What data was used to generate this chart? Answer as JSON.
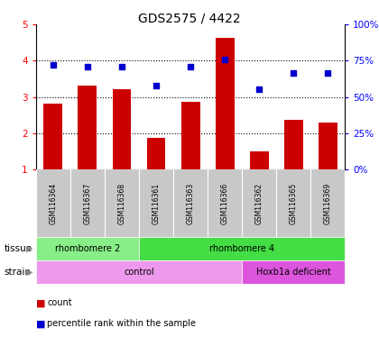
{
  "title": "GDS2575 / 4422",
  "samples": [
    "GSM116364",
    "GSM116367",
    "GSM116368",
    "GSM116361",
    "GSM116363",
    "GSM116366",
    "GSM116362",
    "GSM116365",
    "GSM116369"
  ],
  "counts": [
    2.82,
    3.3,
    3.2,
    1.88,
    2.86,
    4.62,
    1.5,
    2.38,
    2.3
  ],
  "percentile_ranks": [
    3.88,
    3.84,
    3.84,
    3.3,
    3.84,
    4.02,
    3.22,
    3.66,
    3.66
  ],
  "ylim": [
    1,
    5
  ],
  "y2lim": [
    0,
    100
  ],
  "yticks": [
    1,
    2,
    3,
    4,
    5
  ],
  "y2ticks": [
    0,
    25,
    50,
    75,
    100
  ],
  "y2ticklabels": [
    "0%",
    "25%",
    "50%",
    "75%",
    "100%"
  ],
  "bar_color": "#cc0000",
  "dot_color": "#0000cc",
  "tissue_labels": [
    {
      "text": "rhombomere 2",
      "start": 0,
      "end": 3,
      "color": "#88ee88"
    },
    {
      "text": "rhombomere 4",
      "start": 3,
      "end": 9,
      "color": "#44dd44"
    }
  ],
  "strain_labels": [
    {
      "text": "control",
      "start": 0,
      "end": 6,
      "color": "#ee99ee"
    },
    {
      "text": "Hoxb1a deficient",
      "start": 6,
      "end": 9,
      "color": "#dd55dd"
    }
  ],
  "tissue_row_label": "tissue",
  "strain_row_label": "strain",
  "legend_count_label": "count",
  "legend_pct_label": "percentile rank within the sample",
  "background_color": "#ffffff",
  "plot_bg_color": "#ffffff",
  "grid_color": "#000000",
  "sample_bg_color": "#c8c8c8",
  "bar_width": 0.55
}
